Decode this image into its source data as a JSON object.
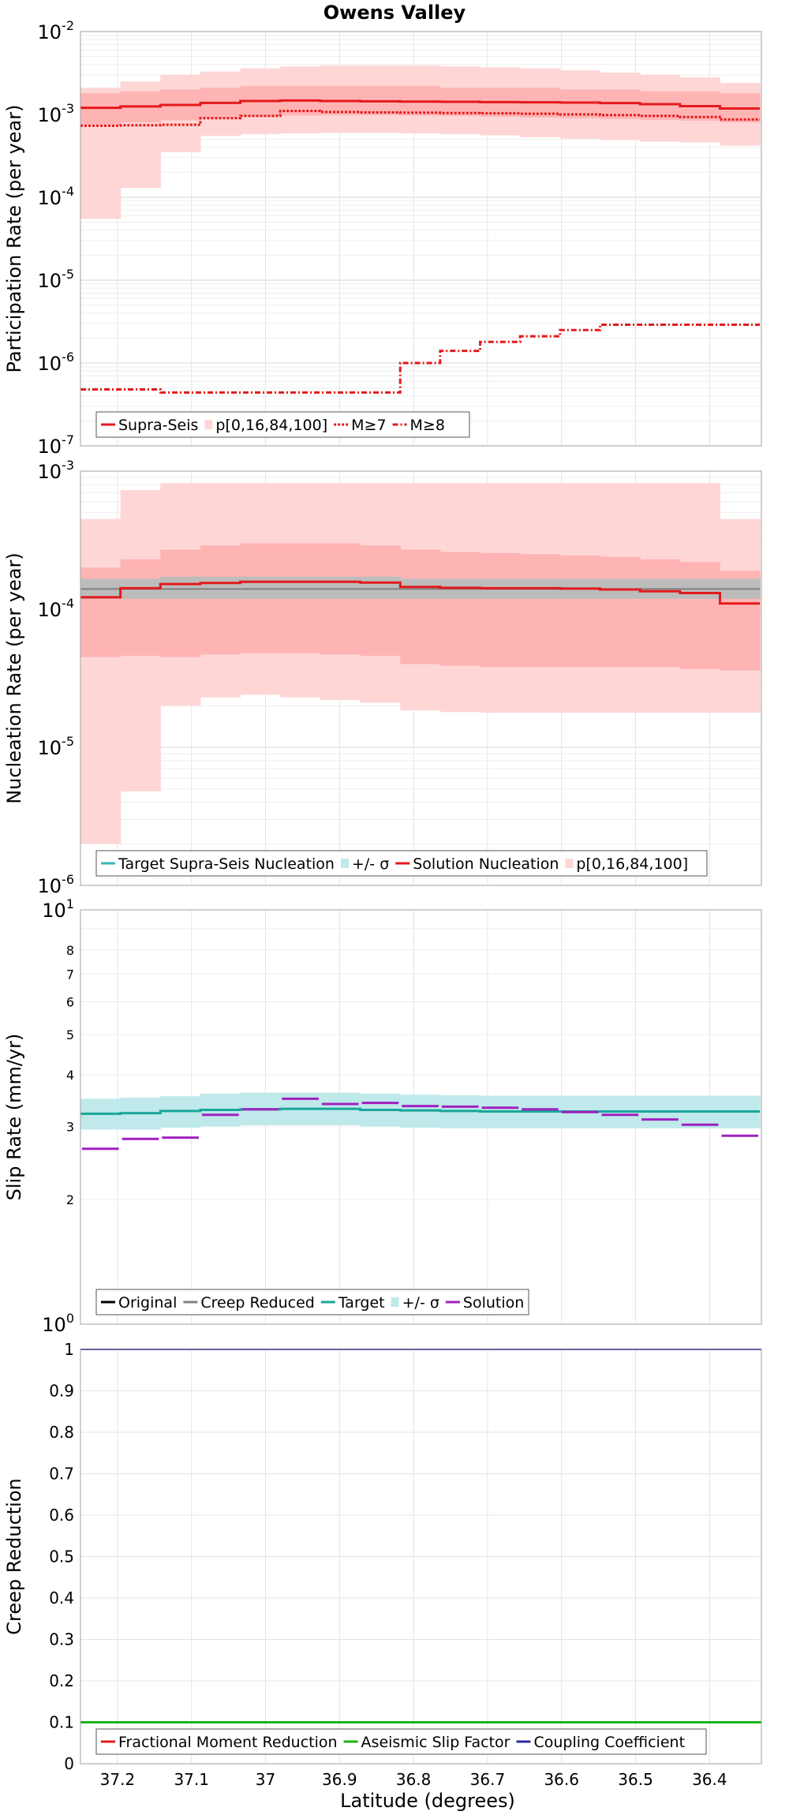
{
  "title": "Owens Valley",
  "xlabel": "Latitude (degrees)",
  "x_ticks": [
    37.2,
    37.1,
    37,
    36.9,
    36.8,
    36.7,
    36.6,
    36.5,
    36.4
  ],
  "x_tick_labels": [
    "37.2",
    "37.1",
    "37",
    "36.9",
    "36.8",
    "36.7",
    "36.6",
    "36.5",
    "36.4"
  ],
  "xlim": [
    37.25,
    36.33
  ],
  "colors": {
    "red": "#e31a1c",
    "red_light": "#ffd6d6",
    "red_mid": "#ffb4b4",
    "gray": "#808080",
    "gray_band": "#bcbcbc",
    "cyan_line": "#3bb6b6",
    "cyan_band": "#bfe9eb",
    "teal": "#1aa69a",
    "purple": "#a020c0",
    "green": "#1ab21a",
    "navy": "#2a2a9a",
    "black": "#000000"
  },
  "chart_data": [
    {
      "id": "participation",
      "type": "line",
      "ylabel": "Participation Rate (per year)",
      "yscale": "log",
      "ylim": [
        1e-07,
        0.01
      ],
      "y_ticks": [
        {
          "mant": "10",
          "exp": "-7",
          "v": 1e-07
        },
        {
          "mant": "10",
          "exp": "-6",
          "v": 1e-06
        },
        {
          "mant": "10",
          "exp": "-5",
          "v": 1e-05
        },
        {
          "mant": "10",
          "exp": "-4",
          "v": 0.0001
        },
        {
          "mant": "10",
          "exp": "-3",
          "v": 0.001
        },
        {
          "mant": "10",
          "exp": "-2",
          "v": 0.01
        }
      ],
      "x_edges": [
        37.25,
        37.196,
        37.142,
        37.088,
        37.034,
        36.98,
        36.926,
        36.872,
        36.818,
        36.764,
        36.71,
        36.656,
        36.602,
        36.548,
        36.494,
        36.44,
        36.386,
        36.332
      ],
      "bands": [
        {
          "color": "red_light",
          "low": [
            5.5e-05,
            0.00013,
            0.00035,
            0.00055,
            0.00058,
            0.00059,
            0.0006,
            0.0006,
            0.00059,
            0.00058,
            0.00056,
            0.00053,
            0.00051,
            0.00049,
            0.00047,
            0.00046,
            0.00042
          ],
          "high": [
            0.0021,
            0.0025,
            0.003,
            0.0033,
            0.0036,
            0.0038,
            0.0039,
            0.0039,
            0.0039,
            0.0038,
            0.0037,
            0.0036,
            0.0034,
            0.0032,
            0.003,
            0.0028,
            0.0024
          ]
        },
        {
          "color": "red_mid",
          "low": [
            0.00075,
            0.0008,
            0.00085,
            0.0009,
            0.00095,
            0.00097,
            0.00098,
            0.00098,
            0.00097,
            0.00096,
            0.00094,
            0.00092,
            0.0009,
            0.00088,
            0.00086,
            0.00084,
            0.0008
          ],
          "high": [
            0.0018,
            0.0019,
            0.002,
            0.0021,
            0.0022,
            0.0022,
            0.0022,
            0.0022,
            0.0022,
            0.0021,
            0.0021,
            0.0021,
            0.002,
            0.002,
            0.0019,
            0.0019,
            0.0018
          ]
        }
      ],
      "series": [
        {
          "name": "Supra-Seis",
          "style": "solid",
          "values": [
            0.0012,
            0.00125,
            0.0013,
            0.00138,
            0.00145,
            0.00147,
            0.00145,
            0.00144,
            0.00143,
            0.00142,
            0.00141,
            0.0014,
            0.00139,
            0.00137,
            0.00133,
            0.00126,
            0.00118
          ]
        },
        {
          "name": "M≥7",
          "style": "dotted",
          "values": [
            0.00073,
            0.00074,
            0.00075,
            0.0009,
            0.00096,
            0.0011,
            0.00107,
            0.00106,
            0.00105,
            0.00104,
            0.00103,
            0.00102,
            0.001,
            0.00098,
            0.00096,
            0.00093,
            0.00087
          ]
        },
        {
          "name": "M≥8",
          "style": "dashdot",
          "values": [
            4.8e-07,
            4.8e-07,
            4.4e-07,
            4.4e-07,
            4.4e-07,
            4.4e-07,
            4.4e-07,
            4.4e-07,
            1e-06,
            1.4e-06,
            1.8e-06,
            2.1e-06,
            2.5e-06,
            2.9e-06,
            2.9e-06,
            2.9e-06,
            2.9e-06
          ]
        }
      ],
      "legend": [
        {
          "label": "Supra-Seis",
          "kind": "line",
          "color": "red",
          "style": "solid"
        },
        {
          "label": "p[0,16,84,100]",
          "kind": "patch",
          "color": "red_light"
        },
        {
          "label": "M≥7",
          "kind": "line",
          "color": "red",
          "style": "dotted"
        },
        {
          "label": "M≥8",
          "kind": "line",
          "color": "red",
          "style": "dashdot"
        }
      ]
    },
    {
      "id": "nucleation",
      "type": "line",
      "ylabel": "Nucleation Rate (per year)",
      "yscale": "log",
      "ylim": [
        1e-06,
        0.001
      ],
      "y_ticks": [
        {
          "mant": "10",
          "exp": "-6",
          "v": 1e-06
        },
        {
          "mant": "10",
          "exp": "-5",
          "v": 1e-05
        },
        {
          "mant": "10",
          "exp": "-4",
          "v": 0.0001
        },
        {
          "mant": "10",
          "exp": "-3",
          "v": 0.001
        }
      ],
      "x_edges": [
        37.25,
        37.196,
        37.142,
        37.088,
        37.034,
        36.98,
        36.926,
        36.872,
        36.818,
        36.764,
        36.71,
        36.656,
        36.602,
        36.548,
        36.494,
        36.44,
        36.386,
        36.332
      ],
      "bands": [
        {
          "color": "red_light",
          "low": [
            2e-06,
            4.8e-06,
            2e-05,
            2.3e-05,
            2.4e-05,
            2.3e-05,
            2.2e-05,
            2.1e-05,
            1.85e-05,
            1.8e-05,
            1.78e-05,
            1.78e-05,
            1.78e-05,
            1.78e-05,
            1.78e-05,
            1.78e-05,
            1.78e-05
          ],
          "high": [
            0.00045,
            0.00073,
            0.00082,
            0.00082,
            0.00082,
            0.00082,
            0.00082,
            0.00082,
            0.00082,
            0.00082,
            0.00082,
            0.00082,
            0.00082,
            0.00082,
            0.00082,
            0.00082,
            0.00045
          ]
        },
        {
          "color": "red_mid",
          "low": [
            4.5e-05,
            4.6e-05,
            4.5e-05,
            4.7e-05,
            4.8e-05,
            4.8e-05,
            4.7e-05,
            4.6e-05,
            4e-05,
            3.9e-05,
            3.8e-05,
            3.8e-05,
            3.8e-05,
            3.8e-05,
            3.8e-05,
            3.7e-05,
            3.6e-05
          ],
          "high": [
            0.0002,
            0.00023,
            0.00027,
            0.00029,
            0.0003,
            0.0003,
            0.0003,
            0.00029,
            0.00027,
            0.00026,
            0.000255,
            0.00025,
            0.000245,
            0.00024,
            0.00023,
            0.00022,
            0.00019
          ]
        },
        {
          "color": "gray_band",
          "low": [
            0.000119,
            0.000119,
            0.000119,
            0.000119,
            0.000119,
            0.000119,
            0.000119,
            0.000119,
            0.000119,
            0.000119,
            0.000119,
            0.000119,
            0.000119,
            0.000119,
            0.000119,
            0.000119,
            0.000119
          ],
          "high": [
            0.000166,
            0.000166,
            0.000172,
            0.000172,
            0.000172,
            0.000172,
            0.000172,
            0.000172,
            0.000166,
            0.000166,
            0.000166,
            0.000166,
            0.000166,
            0.000166,
            0.000166,
            0.000166,
            0.000166
          ]
        }
      ],
      "series": [
        {
          "name": "Target Supra-Seis Nucleation",
          "color": "gray",
          "style": "solid",
          "width": 2,
          "values": [
            0.00014,
            0.00014,
            0.00014,
            0.00014,
            0.00014,
            0.00014,
            0.00014,
            0.00014,
            0.00014,
            0.00014,
            0.00014,
            0.00014,
            0.00014,
            0.00014,
            0.00014,
            0.00014,
            0.00014
          ]
        },
        {
          "name": "Solution Nucleation",
          "color": "red",
          "style": "solid",
          "width": 3,
          "values": [
            0.000122,
            0.000142,
            0.000152,
            0.000155,
            0.000158,
            0.000158,
            0.000158,
            0.000156,
            0.000145,
            0.000143,
            0.000142,
            0.000142,
            0.000141,
            0.000139,
            0.000135,
            0.000131,
            0.00011
          ]
        }
      ],
      "legend": [
        {
          "label": "Target Supra-Seis Nucleation",
          "kind": "line",
          "color": "cyan_line",
          "style": "solid"
        },
        {
          "label": "+/- σ",
          "kind": "patch",
          "color": "cyan_band"
        },
        {
          "label": "Solution Nucleation",
          "kind": "line",
          "color": "red",
          "style": "solid"
        },
        {
          "label": "p[0,16,84,100]",
          "kind": "patch",
          "color": "red_light"
        }
      ]
    },
    {
      "id": "slip",
      "type": "line",
      "ylabel": "Slip Rate (mm/yr)",
      "yscale": "log",
      "ylim": [
        1,
        10
      ],
      "y_ticks": [
        {
          "mant": "10",
          "exp": "0",
          "v": 1
        },
        {
          "mant": "10",
          "exp": "1",
          "v": 10
        }
      ],
      "y_minor_ticks": [
        {
          "label": "2",
          "v": 2
        },
        {
          "label": "3",
          "v": 3
        },
        {
          "label": "4",
          "v": 4
        },
        {
          "label": "5",
          "v": 5
        },
        {
          "label": "6",
          "v": 6
        },
        {
          "label": "7",
          "v": 7
        },
        {
          "label": "8",
          "v": 8
        }
      ],
      "x_edges": [
        37.25,
        37.196,
        37.142,
        37.088,
        37.034,
        36.98,
        36.926,
        36.872,
        36.818,
        36.764,
        36.71,
        36.656,
        36.602,
        36.548,
        36.494,
        36.44,
        36.386,
        36.332
      ],
      "bands": [
        {
          "color": "cyan_band",
          "low": [
            2.95,
            2.95,
            2.98,
            3.0,
            3.02,
            3.02,
            3.02,
            3.0,
            2.98,
            2.97,
            2.97,
            2.97,
            2.97,
            2.97,
            2.97,
            2.97,
            2.97
          ],
          "high": [
            3.5,
            3.52,
            3.55,
            3.6,
            3.62,
            3.62,
            3.62,
            3.6,
            3.58,
            3.57,
            3.56,
            3.56,
            3.56,
            3.56,
            3.56,
            3.56,
            3.56
          ]
        }
      ],
      "series": [
        {
          "name": "Target",
          "color": "teal",
          "style": "solid",
          "width": 3,
          "values": [
            3.22,
            3.23,
            3.27,
            3.29,
            3.3,
            3.31,
            3.31,
            3.29,
            3.28,
            3.27,
            3.26,
            3.26,
            3.26,
            3.26,
            3.26,
            3.26,
            3.26
          ]
        },
        {
          "name": "Solution",
          "color": "purple",
          "style": "segment",
          "width": 3,
          "values": [
            2.65,
            2.8,
            2.82,
            3.2,
            3.3,
            3.5,
            3.4,
            3.42,
            3.36,
            3.35,
            3.33,
            3.3,
            3.25,
            3.2,
            3.12,
            3.03,
            2.85
          ]
        }
      ],
      "legend": [
        {
          "label": "Original",
          "kind": "line",
          "color": "black",
          "style": "solid"
        },
        {
          "label": "Creep Reduced",
          "kind": "line",
          "color": "gray",
          "style": "solid"
        },
        {
          "label": "Target",
          "kind": "line",
          "color": "teal",
          "style": "solid"
        },
        {
          "label": "+/- σ",
          "kind": "patch",
          "color": "cyan_band"
        },
        {
          "label": "Solution",
          "kind": "line",
          "color": "purple",
          "style": "solid"
        }
      ]
    },
    {
      "id": "creep",
      "type": "line",
      "ylabel": "Creep Reduction",
      "yscale": "linear",
      "ylim": [
        0,
        1
      ],
      "y_ticks": [
        {
          "label": "0",
          "v": 0
        },
        {
          "label": "0.1",
          "v": 0.1
        },
        {
          "label": "0.2",
          "v": 0.2
        },
        {
          "label": "0.3",
          "v": 0.3
        },
        {
          "label": "0.4",
          "v": 0.4
        },
        {
          "label": "0.5",
          "v": 0.5
        },
        {
          "label": "0.6",
          "v": 0.6
        },
        {
          "label": "0.7",
          "v": 0.7
        },
        {
          "label": "0.8",
          "v": 0.8
        },
        {
          "label": "0.9",
          "v": 0.9
        },
        {
          "label": "1",
          "v": 1
        }
      ],
      "series": [
        {
          "name": "Coupling Coefficient",
          "color": "navy",
          "width": 2,
          "y": 1.0
        },
        {
          "name": "Aseismic Slip Factor",
          "color": "green",
          "width": 3,
          "y": 0.1
        }
      ],
      "legend": [
        {
          "label": "Fractional Moment Reduction",
          "kind": "line",
          "color": "red",
          "style": "solid"
        },
        {
          "label": "Aseismic Slip Factor",
          "kind": "line",
          "color": "green",
          "style": "solid"
        },
        {
          "label": "Coupling Coefficient",
          "kind": "line",
          "color": "navy",
          "style": "solid"
        }
      ]
    }
  ]
}
